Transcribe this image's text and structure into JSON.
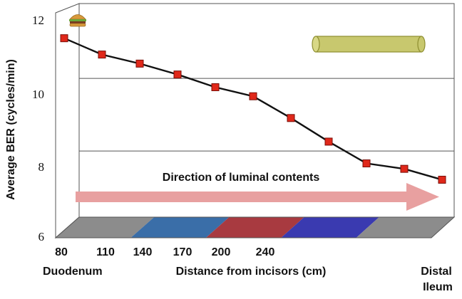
{
  "chart_data": {
    "type": "line",
    "ylabel": "Average BER (cycles/min)",
    "xlabel": "Distance from incisors (cm)",
    "x_ticks": [
      "80",
      "110",
      "140",
      "170",
      "200",
      "240"
    ],
    "y_ticks": [
      "6",
      "8",
      "10",
      "12"
    ],
    "ylim": [
      6,
      12.2
    ],
    "series": [
      {
        "values": [
          11.5,
          11.05,
          10.8,
          10.5,
          10.15,
          9.9,
          9.3,
          8.65,
          8.05,
          7.9,
          7.6
        ],
        "color": "#111111",
        "marker_color": "#e0281a"
      }
    ],
    "annotations": {
      "arrow_text": "Direction of luminal contents",
      "arrow_color": "#e8a0a0",
      "left_end_label": "Duodenum",
      "right_end_label_line1": "Distal",
      "right_end_label_line2": "Ileum",
      "meal_icon": "burger-icon",
      "tube_icon": "cylinder-icon"
    },
    "floor_segment_colors": [
      "#8c8c8c",
      "#3a6ea8",
      "#a83a40",
      "#3a3ab0",
      "#8c8c8c"
    ],
    "grid": true
  }
}
